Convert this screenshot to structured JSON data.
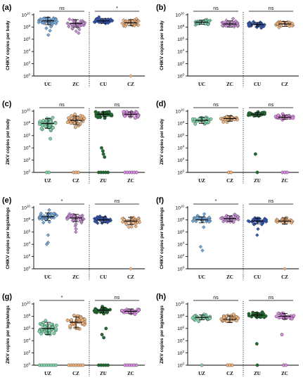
{
  "chart_data": [
    {
      "label": "(a)",
      "type": "scatter",
      "ylabel": "CHIKV copies per body",
      "yticks": [
        "10^0",
        "10^2",
        "10^4",
        "10^6",
        "10^8",
        "10^10"
      ],
      "ylim": [
        0,
        10
      ],
      "yscale": "log10",
      "groups": [
        {
          "cat": "UC",
          "color": "#6fa8dc",
          "marker": "diamond",
          "n": 40,
          "med": 9.0,
          "spread": 0.6,
          "low": [
            6.7,
            7.4,
            7.8
          ]
        },
        {
          "cat": "ZC",
          "color": "#c78bd6",
          "marker": "diamond",
          "n": 40,
          "med": 8.6,
          "spread": 0.6,
          "low": [
            7.0,
            7.3,
            7.6,
            7.8
          ]
        },
        {
          "cat": "CU",
          "color": "#2f54b5",
          "marker": "diamond",
          "n": 45,
          "med": 9.0,
          "spread": 0.4,
          "low": []
        },
        {
          "cat": "CZ",
          "color": "#f0b27a",
          "marker": "diamond",
          "n": 35,
          "med": 8.7,
          "spread": 0.5,
          "low": [
            0
          ]
        }
      ],
      "comparisons": [
        {
          "a": 0,
          "b": 1,
          "text": "ns"
        },
        {
          "a": 2,
          "b": 3,
          "text": "*"
        }
      ]
    },
    {
      "label": "(b)",
      "type": "scatter",
      "ylabel": "CHIKV copies per body",
      "yticks": [
        "10^0",
        "10^2",
        "10^4",
        "10^6",
        "10^8",
        "10^10"
      ],
      "ylim": [
        0,
        10
      ],
      "yscale": "log10",
      "groups": [
        {
          "cat": "UC",
          "color": "#6fc7a0",
          "marker": "diamond",
          "n": 30,
          "med": 8.8,
          "spread": 0.35,
          "low": []
        },
        {
          "cat": "ZC",
          "color": "#c78bd6",
          "marker": "diamond",
          "n": 35,
          "med": 8.5,
          "spread": 0.5,
          "low": []
        },
        {
          "cat": "CU",
          "color": "#2f54b5",
          "marker": "diamond",
          "n": 35,
          "med": 8.4,
          "spread": 0.35,
          "low": []
        },
        {
          "cat": "CZ",
          "color": "#f0b27a",
          "marker": "diamond",
          "n": 30,
          "med": 8.5,
          "spread": 0.4,
          "low": []
        }
      ],
      "comparisons": [
        {
          "a": 0,
          "b": 1,
          "text": "ns"
        },
        {
          "a": 2,
          "b": 3,
          "text": "ns"
        }
      ]
    },
    {
      "label": "(c)",
      "type": "scatter",
      "ylabel": "ZIKV copies per body",
      "yticks": [
        "10^0",
        "10^2",
        "10^4",
        "10^6",
        "10^8",
        "10^10"
      ],
      "ylim": [
        0,
        10
      ],
      "yscale": "log10",
      "groups": [
        {
          "cat": "UZ",
          "color": "#7dd3a8",
          "marker": "circle",
          "n": 40,
          "med": 8.0,
          "spread": 0.8,
          "low": [
            5.5,
            0,
            0
          ]
        },
        {
          "cat": "CZ",
          "color": "#f0b27a",
          "marker": "circle",
          "n": 40,
          "med": 8.5,
          "spread": 0.7,
          "low": [
            0,
            0,
            0
          ]
        },
        {
          "cat": "ZU",
          "color": "#1e6b2e",
          "marker": "circle",
          "n": 30,
          "med": 9.5,
          "spread": 0.4,
          "low": [
            4.0,
            3.5,
            3.0,
            2.5,
            0,
            0,
            0,
            0,
            0
          ]
        },
        {
          "cat": "ZC",
          "color": "#d98ae0",
          "marker": "circle",
          "n": 30,
          "med": 9.5,
          "spread": 0.4,
          "low": [
            0,
            0,
            0,
            0,
            0,
            0
          ]
        }
      ],
      "comparisons": [
        {
          "a": 0,
          "b": 1,
          "text": "ns"
        },
        {
          "a": 2,
          "b": 3,
          "text": "ns"
        }
      ]
    },
    {
      "label": "(d)",
      "type": "scatter",
      "ylabel": "ZIKV copies per body",
      "yticks": [
        "10^0",
        "10^2",
        "10^4",
        "10^6",
        "10^8",
        "10^10"
      ],
      "ylim": [
        0,
        10
      ],
      "yscale": "log10",
      "groups": [
        {
          "cat": "UZ",
          "color": "#7dd3a8",
          "marker": "circle",
          "n": 30,
          "med": 8.5,
          "spread": 0.5,
          "low": []
        },
        {
          "cat": "CZ",
          "color": "#f0b27a",
          "marker": "circle",
          "n": 30,
          "med": 8.8,
          "spread": 0.45,
          "low": [
            0,
            0
          ]
        },
        {
          "cat": "ZU",
          "color": "#1e6b2e",
          "marker": "circle",
          "n": 30,
          "med": 9.5,
          "spread": 0.3,
          "low": [
            3.0,
            0
          ]
        },
        {
          "cat": "ZC",
          "color": "#d98ae0",
          "marker": "circle",
          "n": 30,
          "med": 9.0,
          "spread": 0.35,
          "low": [
            0,
            0,
            0
          ]
        }
      ],
      "comparisons": [
        {
          "a": 0,
          "b": 1,
          "text": "ns"
        },
        {
          "a": 2,
          "b": 3,
          "text": "ns"
        }
      ]
    },
    {
      "label": "(e)",
      "type": "scatter",
      "ylabel": "CHIKV copies per legs/wings",
      "yticks": [
        "10^0",
        "10^2",
        "10^4",
        "10^6",
        "10^8",
        "10^10"
      ],
      "ylim": [
        0,
        10
      ],
      "yscale": "log10",
      "groups": [
        {
          "cat": "UC",
          "color": "#6fa8dc",
          "marker": "diamond",
          "n": 35,
          "med": 8.5,
          "spread": 0.6,
          "low": [
            5.5,
            4.3,
            4.0
          ]
        },
        {
          "cat": "ZC",
          "color": "#c78bd6",
          "marker": "diamond",
          "n": 40,
          "med": 8.3,
          "spread": 0.6,
          "low": [
            6.0,
            6.5,
            7.0,
            7.3
          ]
        },
        {
          "cat": "CU",
          "color": "#2f54b5",
          "marker": "diamond",
          "n": 45,
          "med": 8.0,
          "spread": 0.5,
          "low": []
        },
        {
          "cat": "CZ",
          "color": "#f0b27a",
          "marker": "diamond",
          "n": 35,
          "med": 7.8,
          "spread": 0.6,
          "low": [
            6.8,
            0
          ]
        }
      ],
      "comparisons": [
        {
          "a": 0,
          "b": 1,
          "text": "*"
        },
        {
          "a": 2,
          "b": 3,
          "text": "ns"
        }
      ]
    },
    {
      "label": "(f)",
      "type": "scatter",
      "ylabel": "CHIKV copies per legs/wings",
      "yticks": [
        "10^0",
        "10^2",
        "10^4",
        "10^6",
        "10^8",
        "10^10"
      ],
      "ylim": [
        0,
        10
      ],
      "yscale": "log10",
      "groups": [
        {
          "cat": "UC",
          "color": "#6fa8dc",
          "marker": "diamond",
          "n": 30,
          "med": 8.0,
          "spread": 0.5,
          "low": [
            6.8,
            3.6,
            3.0
          ]
        },
        {
          "cat": "ZC",
          "color": "#c78bd6",
          "marker": "diamond",
          "n": 35,
          "med": 8.2,
          "spread": 0.45,
          "low": []
        },
        {
          "cat": "CU",
          "color": "#2f54b5",
          "marker": "diamond",
          "n": 40,
          "med": 7.8,
          "spread": 0.45,
          "low": [
            6.5,
            5.5
          ]
        },
        {
          "cat": "CZ",
          "color": "#f0b27a",
          "marker": "diamond",
          "n": 30,
          "med": 7.8,
          "spread": 0.5,
          "low": [
            0
          ]
        }
      ],
      "comparisons": [
        {
          "a": 0,
          "b": 1,
          "text": "*"
        },
        {
          "a": 2,
          "b": 3,
          "text": "ns"
        }
      ]
    },
    {
      "label": "(g)",
      "type": "scatter",
      "ylabel": "ZIKV copies per legs/wings",
      "yticks": [
        "10^0",
        "10^2",
        "10^4",
        "10^6",
        "10^8",
        "10^10"
      ],
      "ylim": [
        0,
        10
      ],
      "yscale": "log10",
      "groups": [
        {
          "cat": "UZ",
          "color": "#7dd3a8",
          "marker": "circle",
          "n": 45,
          "med": 6.0,
          "spread": 1.0,
          "low": [
            0,
            0,
            0,
            0,
            0,
            0,
            0,
            0
          ]
        },
        {
          "cat": "CZ",
          "color": "#f0b27a",
          "marker": "circle",
          "n": 35,
          "med": 7.0,
          "spread": 0.9,
          "low": [
            0,
            0,
            0,
            0,
            0,
            0,
            0
          ]
        },
        {
          "cat": "ZU",
          "color": "#1e6b2e",
          "marker": "circle",
          "n": 30,
          "med": 9.0,
          "spread": 0.4,
          "low": [
            6.0,
            5.0,
            4.5,
            0,
            0,
            0,
            0,
            0
          ]
        },
        {
          "cat": "ZC",
          "color": "#d98ae0",
          "marker": "circle",
          "n": 30,
          "med": 8.8,
          "spread": 0.4,
          "low": [
            0,
            0,
            0,
            0,
            0,
            0
          ]
        }
      ],
      "comparisons": [
        {
          "a": 0,
          "b": 1,
          "text": "*"
        },
        {
          "a": 2,
          "b": 3,
          "text": "ns"
        }
      ]
    },
    {
      "label": "(h)",
      "type": "scatter",
      "ylabel": "ZIKV copies per legs/wings",
      "yticks": [
        "10^0",
        "10^2",
        "10^4",
        "10^6",
        "10^8",
        "10^10"
      ],
      "ylim": [
        0,
        10
      ],
      "yscale": "log10",
      "groups": [
        {
          "cat": "UZ",
          "color": "#7dd3a8",
          "marker": "circle",
          "n": 25,
          "med": 7.8,
          "spread": 0.4,
          "low": [
            0
          ]
        },
        {
          "cat": "CZ",
          "color": "#f0b27a",
          "marker": "circle",
          "n": 30,
          "med": 7.5,
          "spread": 0.55,
          "low": [
            0,
            0,
            0
          ]
        },
        {
          "cat": "ZU",
          "color": "#1e6b2e",
          "marker": "circle",
          "n": 30,
          "med": 8.2,
          "spread": 0.35,
          "low": [
            3.5,
            0
          ]
        },
        {
          "cat": "ZC",
          "color": "#d98ae0",
          "marker": "circle",
          "n": 25,
          "med": 8.0,
          "spread": 0.45,
          "low": [
            5.0,
            0,
            0
          ]
        }
      ],
      "comparisons": [
        {
          "a": 0,
          "b": 1,
          "text": "ns"
        },
        {
          "a": 2,
          "b": 3,
          "text": "ns"
        }
      ]
    }
  ]
}
